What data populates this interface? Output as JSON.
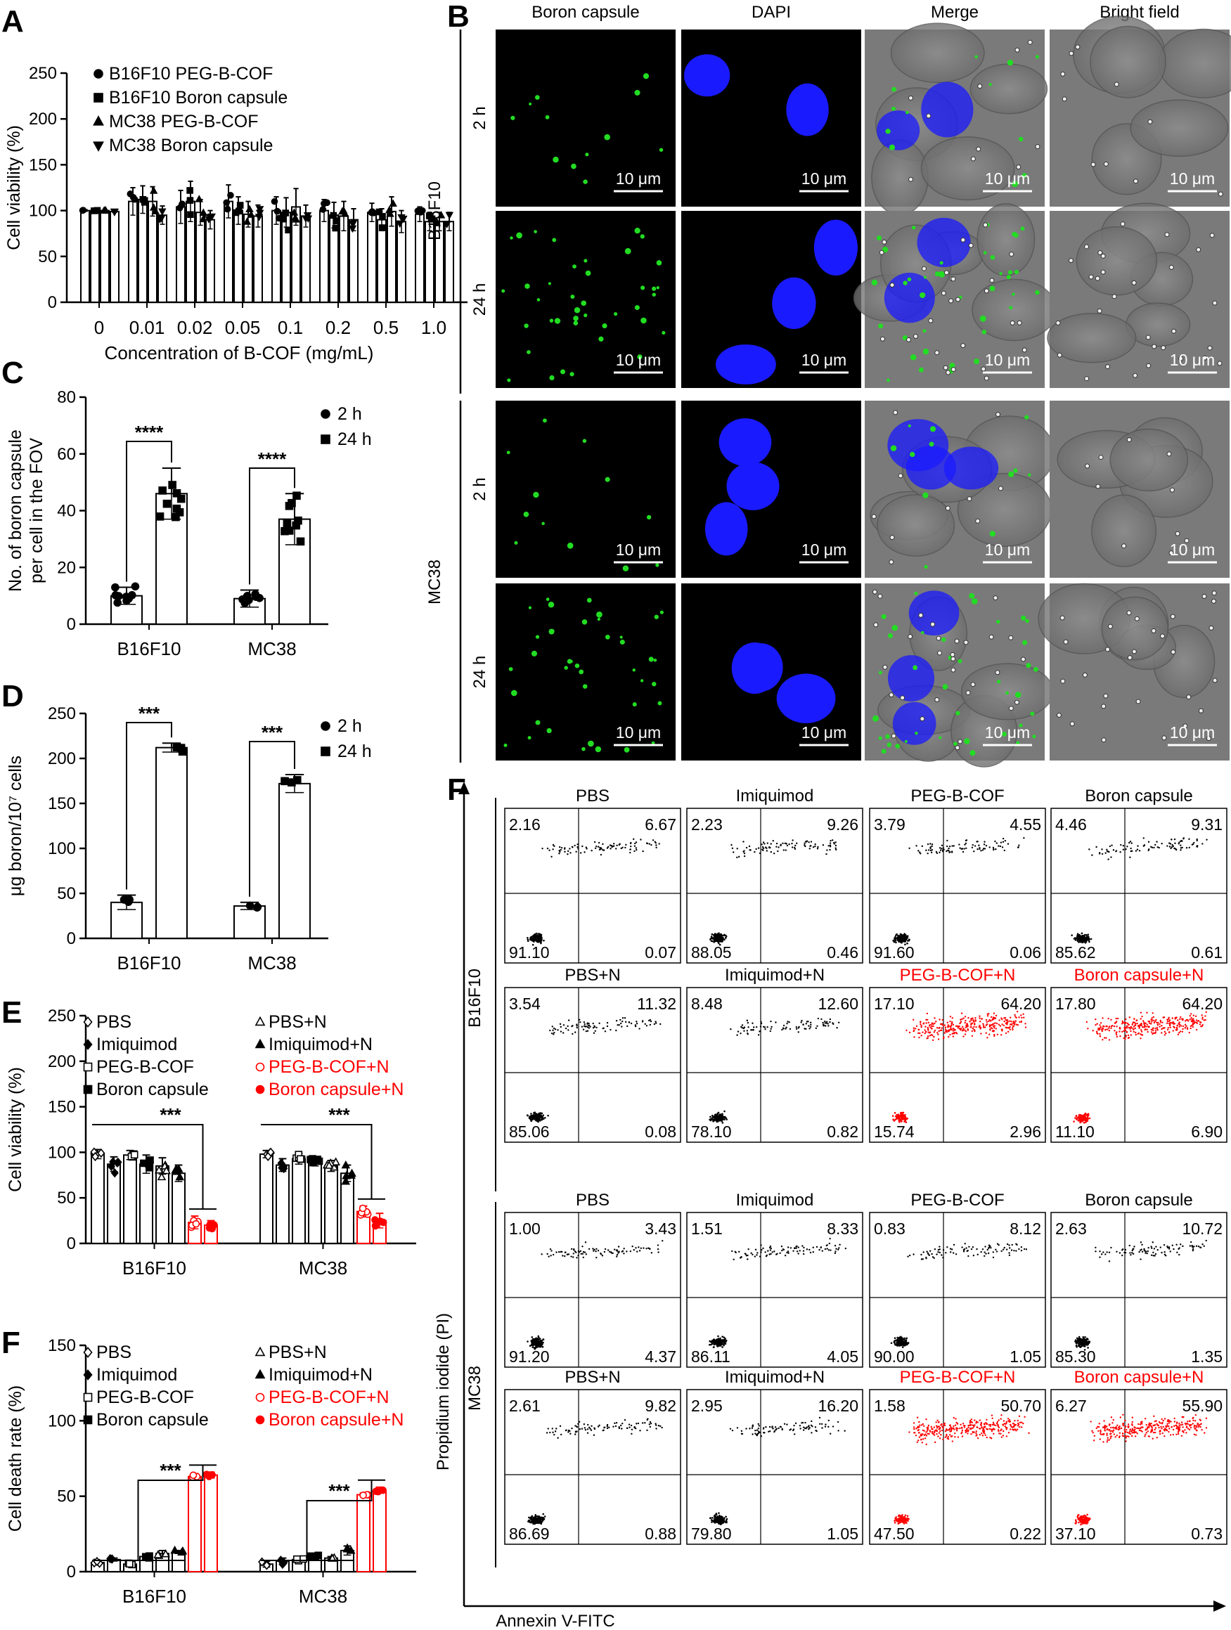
{
  "figure": {
    "panel_labels": [
      "A",
      "B",
      "C",
      "D",
      "E",
      "F",
      "G"
    ],
    "colors": {
      "red": "#ff0000",
      "black": "#000000",
      "dapi_blue": "#1a1aff",
      "capsule_green": "#22dd22"
    }
  },
  "chart_data": [
    {
      "id": "A",
      "type": "bar",
      "ylabel": "Cell viability (%)",
      "xlabel": "Concentration of B-COF (mg/mL)",
      "categories": [
        "0",
        "0.01",
        "0.02",
        "0.05",
        "0.1",
        "0.2",
        "0.5",
        "1.0"
      ],
      "ylim": [
        0,
        250
      ],
      "yticks": [
        0,
        50,
        100,
        150,
        200,
        250
      ],
      "series": [
        {
          "name": "B16F10 PEG-B-COF",
          "marker": "circle",
          "values": [
            100,
            110,
            104,
            110,
            100,
            100,
            98,
            96
          ],
          "err": [
            1,
            15,
            18,
            18,
            15,
            12,
            10,
            8
          ]
        },
        {
          "name": "B16F10 Boron capsule",
          "marker": "square",
          "values": [
            100,
            112,
            110,
            100,
            98,
            95,
            90,
            88
          ],
          "err": [
            1,
            15,
            22,
            15,
            16,
            14,
            12,
            10
          ]
        },
        {
          "name": "MC38 PEG-B-COF",
          "marker": "triangle-up",
          "values": [
            100,
            110,
            98,
            96,
            104,
            94,
            99,
            88
          ],
          "err": [
            1,
            16,
            14,
            14,
            20,
            16,
            16,
            10
          ]
        },
        {
          "name": "MC38 Boron capsule",
          "marker": "triangle-down",
          "values": [
            99,
            95,
            90,
            94,
            94,
            90,
            88,
            88
          ],
          "err": [
            1,
            10,
            10,
            12,
            12,
            12,
            12,
            10
          ]
        }
      ],
      "legend": "top-left"
    },
    {
      "id": "C",
      "type": "bar",
      "ylabel_lines": [
        "No. of boron capsule",
        "per cell in the FOV"
      ],
      "categories": [
        "B16F10",
        "MC38"
      ],
      "ylim": [
        0,
        80
      ],
      "yticks": [
        0,
        20,
        40,
        60,
        80
      ],
      "series": [
        {
          "name": "2 h",
          "marker": "circle",
          "values": [
            10,
            9
          ],
          "err": [
            3,
            3
          ]
        },
        {
          "name": "24 h",
          "marker": "square",
          "values": [
            46,
            37
          ],
          "err": [
            9,
            9
          ]
        }
      ],
      "significance": [
        "****",
        "****"
      ],
      "legend": "top-right"
    },
    {
      "id": "D",
      "type": "bar",
      "ylabel": "μg boron/10⁷ cells",
      "categories": [
        "B16F10",
        "MC38"
      ],
      "ylim": [
        0,
        250
      ],
      "yticks": [
        0,
        50,
        100,
        150,
        200,
        250
      ],
      "series": [
        {
          "name": "2 h",
          "marker": "circle",
          "values": [
            40,
            36
          ],
          "err": [
            8,
            4
          ]
        },
        {
          "name": "24 h",
          "marker": "square",
          "values": [
            212,
            172
          ],
          "err": [
            5,
            10
          ]
        }
      ],
      "significance": [
        "***",
        "***"
      ],
      "legend": "top-right"
    },
    {
      "id": "E",
      "type": "bar",
      "ylabel": "Cell viability (%)",
      "categories": [
        "B16F10",
        "MC38"
      ],
      "ylim": [
        0,
        250
      ],
      "yticks": [
        0,
        50,
        100,
        150,
        200,
        250
      ],
      "series": [
        {
          "name": "PBS",
          "marker": "diamond-open",
          "color": "#000000",
          "values": [
            98,
            98
          ],
          "err": [
            5,
            4
          ]
        },
        {
          "name": "Imiquimod",
          "marker": "diamond",
          "color": "#000000",
          "values": [
            87,
            86
          ],
          "err": [
            8,
            7
          ]
        },
        {
          "name": "PEG-B-COF",
          "marker": "square-open",
          "color": "#000000",
          "values": [
            97,
            93
          ],
          "err": [
            5,
            6
          ]
        },
        {
          "name": "Boron capsule",
          "marker": "square",
          "color": "#000000",
          "values": [
            87,
            90
          ],
          "err": [
            10,
            5
          ]
        },
        {
          "name": "PBS+N",
          "marker": "triangle-open",
          "color": "#000000",
          "values": [
            85,
            85
          ],
          "err": [
            9,
            6
          ]
        },
        {
          "name": "Imiquimod+N",
          "marker": "triangle",
          "color": "#000000",
          "values": [
            77,
            77
          ],
          "err": [
            9,
            9
          ]
        },
        {
          "name": "PEG-B-COF+N",
          "marker": "circle-open",
          "color": "#ff0000",
          "values": [
            23,
            35
          ],
          "err": [
            7,
            6
          ]
        },
        {
          "name": "Boron capsule+N",
          "marker": "circle",
          "color": "#ff0000",
          "values": [
            20,
            25
          ],
          "err": [
            5,
            8
          ]
        }
      ],
      "significance": [
        "***",
        "***"
      ],
      "legend": "top"
    },
    {
      "id": "G",
      "type": "bar",
      "ylabel": "Cell death rate (%)",
      "categories": [
        "B16F10",
        "MC38"
      ],
      "ylim": [
        0,
        150
      ],
      "yticks": [
        0,
        50,
        100,
        150
      ],
      "series": [
        {
          "name": "PBS",
          "marker": "diamond-open",
          "color": "#000000",
          "values": [
            6,
            5
          ],
          "err": [
            1,
            2
          ]
        },
        {
          "name": "Imiquimod",
          "marker": "diamond",
          "color": "#000000",
          "values": [
            8,
            7
          ],
          "err": [
            1,
            2
          ]
        },
        {
          "name": "PEG-B-COF",
          "marker": "square-open",
          "color": "#000000",
          "values": [
            5,
            8
          ],
          "err": [
            1,
            1
          ]
        },
        {
          "name": "Boron capsule",
          "marker": "square",
          "color": "#000000",
          "values": [
            10,
            10
          ],
          "err": [
            1,
            1
          ]
        },
        {
          "name": "PBS+N",
          "marker": "triangle-open",
          "color": "#000000",
          "values": [
            12,
            9
          ],
          "err": [
            2,
            1
          ]
        },
        {
          "name": "Imiquimod+N",
          "marker": "triangle",
          "color": "#000000",
          "values": [
            13,
            14
          ],
          "err": [
            1,
            3
          ]
        },
        {
          "name": "PEG-B-COF+N",
          "marker": "circle-open",
          "color": "#ff0000",
          "values": [
            63,
            51
          ],
          "err": [
            2,
            1
          ]
        },
        {
          "name": "Boron capsule+N",
          "marker": "circle",
          "color": "#ff0000",
          "values": [
            64,
            54
          ],
          "err": [
            2,
            2
          ]
        }
      ],
      "significance": [
        "***",
        "***"
      ],
      "legend": "top"
    }
  ],
  "panel_b": {
    "columns": [
      "Boron capsule",
      "DAPI",
      "Merge",
      "Bright field"
    ],
    "groups": [
      "B16F10",
      "MC38"
    ],
    "rows": [
      "2 h",
      "24 h",
      "2 h",
      "24 h"
    ],
    "scale_bar": "10 μm"
  },
  "panel_f": {
    "xlabel": "Annexin V-FITC",
    "ylabel": "Propidium iodide (PI)",
    "groups": [
      "B16F10",
      "MC38"
    ],
    "rows": [
      [
        {
          "title": "PBS",
          "red": false,
          "q": [
            "2.16",
            "6.67",
            "91.10",
            "0.07"
          ]
        },
        {
          "title": "Imiquimod",
          "red": false,
          "q": [
            "2.23",
            "9.26",
            "88.05",
            "0.46"
          ]
        },
        {
          "title": "PEG-B-COF",
          "red": false,
          "q": [
            "3.79",
            "4.55",
            "91.60",
            "0.06"
          ]
        },
        {
          "title": "Boron capsule",
          "red": false,
          "q": [
            "4.46",
            "9.31",
            "85.62",
            "0.61"
          ]
        }
      ],
      [
        {
          "title": "PBS+N",
          "red": false,
          "q": [
            "3.54",
            "11.32",
            "85.06",
            "0.08"
          ]
        },
        {
          "title": "Imiquimod+N",
          "red": false,
          "q": [
            "8.48",
            "12.60",
            "78.10",
            "0.82"
          ]
        },
        {
          "title": "PEG-B-COF+N",
          "red": true,
          "q": [
            "17.10",
            "64.20",
            "15.74",
            "2.96"
          ]
        },
        {
          "title": "Boron capsule+N",
          "red": true,
          "q": [
            "17.80",
            "64.20",
            "11.10",
            "6.90"
          ]
        }
      ],
      [
        {
          "title": "PBS",
          "red": false,
          "q": [
            "1.00",
            "3.43",
            "91.20",
            "4.37"
          ]
        },
        {
          "title": "Imiquimod",
          "red": false,
          "q": [
            "1.51",
            "8.33",
            "86.11",
            "4.05"
          ]
        },
        {
          "title": "PEG-B-COF",
          "red": false,
          "q": [
            "0.83",
            "8.12",
            "90.00",
            "1.05"
          ]
        },
        {
          "title": "Boron capsule",
          "red": false,
          "q": [
            "2.63",
            "10.72",
            "85.30",
            "1.35"
          ]
        }
      ],
      [
        {
          "title": "PBS+N",
          "red": false,
          "q": [
            "2.61",
            "9.82",
            "86.69",
            "0.88"
          ]
        },
        {
          "title": "Imiquimod+N",
          "red": false,
          "q": [
            "2.95",
            "16.20",
            "79.80",
            "1.05"
          ]
        },
        {
          "title": "PEG-B-COF+N",
          "red": true,
          "q": [
            "1.58",
            "50.70",
            "47.50",
            "0.22"
          ]
        },
        {
          "title": "Boron capsule+N",
          "red": true,
          "q": [
            "6.27",
            "55.90",
            "37.10",
            "0.73"
          ]
        }
      ]
    ]
  }
}
